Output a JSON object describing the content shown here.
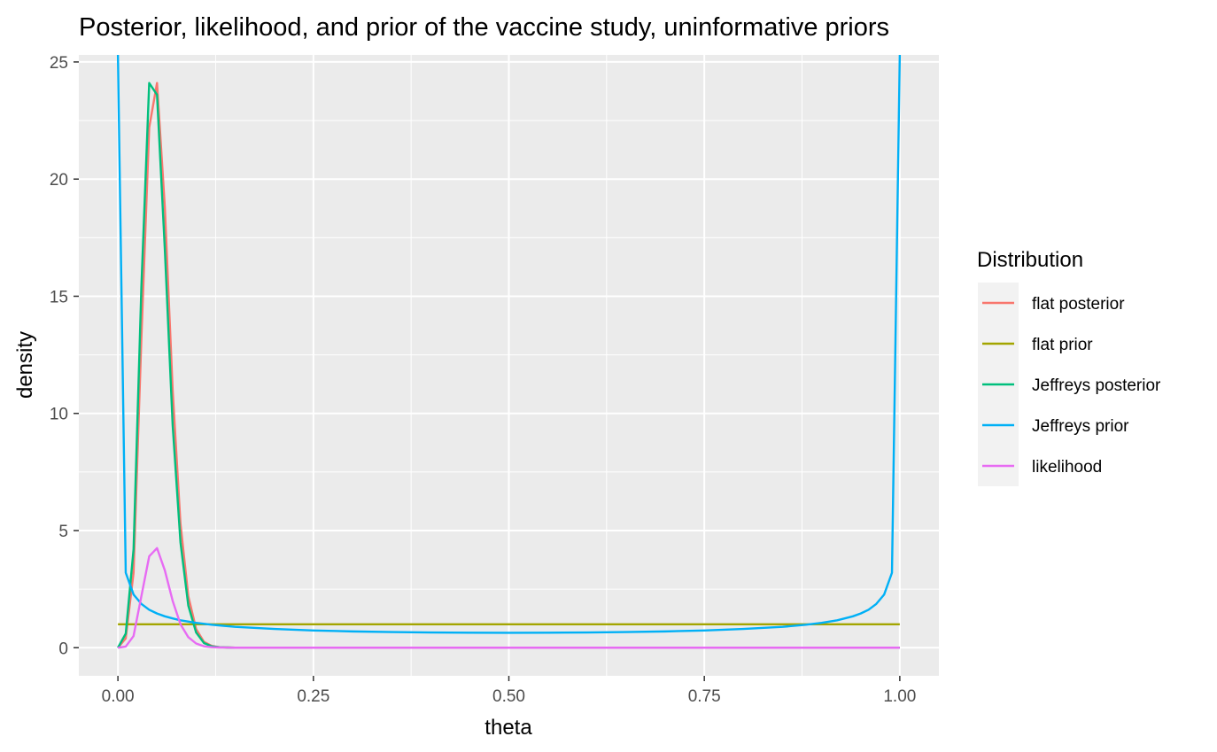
{
  "chart_data": {
    "type": "line",
    "title": "Posterior, likelihood, and prior of the vaccine study, uninformative priors",
    "xlabel": "theta",
    "ylabel": "density",
    "xlim": [
      -0.05,
      1.05
    ],
    "ylim": [
      -1.2,
      25.3
    ],
    "x_ticks": [
      0.0,
      0.25,
      0.5,
      0.75,
      1.0
    ],
    "x_tick_labels": [
      "0.00",
      "0.25",
      "0.50",
      "0.75",
      "1.00"
    ],
    "y_ticks": [
      0,
      5,
      10,
      15,
      20,
      25
    ],
    "y_tick_labels": [
      "0",
      "5",
      "10",
      "15",
      "20",
      "25"
    ],
    "grid": true,
    "legend": {
      "title": "Distribution",
      "position": "right"
    },
    "series": [
      {
        "name": "flat posterior",
        "color": "#F8766D",
        "x": [
          0,
          0.01,
          0.02,
          0.03,
          0.04,
          0.05,
          0.06,
          0.07,
          0.08,
          0.09,
          0.1,
          0.11,
          0.12,
          0.13,
          0.14,
          0.15,
          0.2,
          0.3,
          0.4,
          0.5,
          0.6,
          0.7,
          0.8,
          0.9,
          1.0
        ],
        "y": [
          0,
          0.4,
          3.2,
          13.2,
          22.2,
          24.1,
          18.8,
          11.0,
          5.3,
          2.2,
          0.8,
          0.25,
          0.08,
          0.02,
          0.01,
          0,
          0,
          0,
          0,
          0,
          0,
          0,
          0,
          0,
          0
        ]
      },
      {
        "name": "flat prior",
        "color": "#A3A500",
        "x": [
          0,
          1.0
        ],
        "y": [
          1.0,
          1.0
        ]
      },
      {
        "name": "Jeffreys posterior",
        "color": "#00BF7D",
        "x": [
          0,
          0.01,
          0.02,
          0.03,
          0.04,
          0.05,
          0.06,
          0.07,
          0.08,
          0.09,
          0.1,
          0.11,
          0.12,
          0.13,
          0.14,
          0.15,
          0.2,
          0.3,
          0.4,
          0.5,
          0.6,
          0.7,
          0.8,
          0.9,
          1.0
        ],
        "y": [
          0,
          0.6,
          4.2,
          15.4,
          24.1,
          23.6,
          17.0,
          9.5,
          4.5,
          1.8,
          0.65,
          0.2,
          0.06,
          0.02,
          0.01,
          0,
          0,
          0,
          0,
          0,
          0,
          0,
          0,
          0,
          0
        ]
      },
      {
        "name": "Jeffreys prior",
        "color": "#00B0F6",
        "x": [
          0,
          0.01,
          0.02,
          0.03,
          0.04,
          0.05,
          0.06,
          0.07,
          0.08,
          0.1,
          0.12,
          0.15,
          0.2,
          0.25,
          0.3,
          0.35,
          0.4,
          0.45,
          0.5,
          0.55,
          0.6,
          0.65,
          0.7,
          0.75,
          0.8,
          0.85,
          0.88,
          0.9,
          0.92,
          0.94,
          0.95,
          0.96,
          0.97,
          0.98,
          0.99,
          1.0
        ],
        "y": [
          25.3,
          3.2,
          2.27,
          1.87,
          1.62,
          1.46,
          1.34,
          1.25,
          1.17,
          1.06,
          0.98,
          0.89,
          0.8,
          0.735,
          0.695,
          0.667,
          0.65,
          0.64,
          0.637,
          0.64,
          0.65,
          0.667,
          0.695,
          0.735,
          0.8,
          0.89,
          0.98,
          1.06,
          1.17,
          1.34,
          1.46,
          1.62,
          1.87,
          2.27,
          3.2,
          25.3
        ]
      },
      {
        "name": "likelihood",
        "color": "#E76BF3",
        "x": [
          0,
          0.01,
          0.02,
          0.03,
          0.04,
          0.05,
          0.06,
          0.07,
          0.08,
          0.09,
          0.1,
          0.11,
          0.12,
          0.13,
          0.15,
          0.2,
          0.3,
          0.5,
          0.7,
          0.9,
          1.0
        ],
        "y": [
          0,
          0.05,
          0.5,
          2.2,
          3.9,
          4.25,
          3.3,
          2.0,
          1.0,
          0.45,
          0.18,
          0.06,
          0.02,
          0.01,
          0,
          0,
          0,
          0,
          0,
          0,
          0
        ]
      }
    ]
  }
}
